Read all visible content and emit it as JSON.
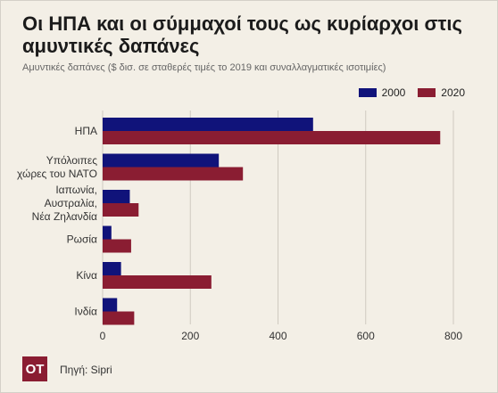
{
  "header": {
    "title": "Οι ΗΠΑ και οι σύμμαχοί τους ως κυρίαρχοι στις αμυντικές δαπάνες",
    "subtitle": "Αμυντικές δαπάνες ($ δισ. σε σταθερές τιμές το 2019 και συναλλαγματικές ισοτιμίες)"
  },
  "footer": {
    "brand": "OT",
    "source": "Πηγή: Sipri"
  },
  "colors": {
    "series_2000": "#10137a",
    "series_2020": "#8a1d32",
    "grid": "#cfcac0",
    "text": "#333333"
  },
  "chart_data": {
    "type": "bar",
    "orientation": "horizontal",
    "title": "Οι ΗΠΑ και οι σύμμαχοί τους ως κυρίαρχοι στις αμυντικές δαπάνες",
    "subtitle": "Αμυντικές δαπάνες ($ δισ. σε σταθερές τιμές το 2019 και συναλλαγματικές ισοτιμίες)",
    "xlabel": "",
    "ylabel": "",
    "xlim": [
      0,
      800
    ],
    "xticks": [
      0,
      200,
      400,
      600,
      800
    ],
    "grid": true,
    "legend_position": "top-right",
    "categories": [
      [
        "ΗΠΑ"
      ],
      [
        "Υπόλοιπες",
        "χώρες του ΝΑΤΟ"
      ],
      [
        "Ιαπωνία,",
        "Αυστραλία,",
        "Νέα Ζηλανδία"
      ],
      [
        "Ρωσία"
      ],
      [
        "Κίνα"
      ],
      [
        "Ινδία"
      ]
    ],
    "series": [
      {
        "name": "2000",
        "color": "#10137a",
        "values": [
          480,
          265,
          62,
          20,
          42,
          33
        ]
      },
      {
        "name": "2020",
        "color": "#8a1d32",
        "values": [
          770,
          320,
          82,
          65,
          248,
          72
        ]
      }
    ]
  }
}
